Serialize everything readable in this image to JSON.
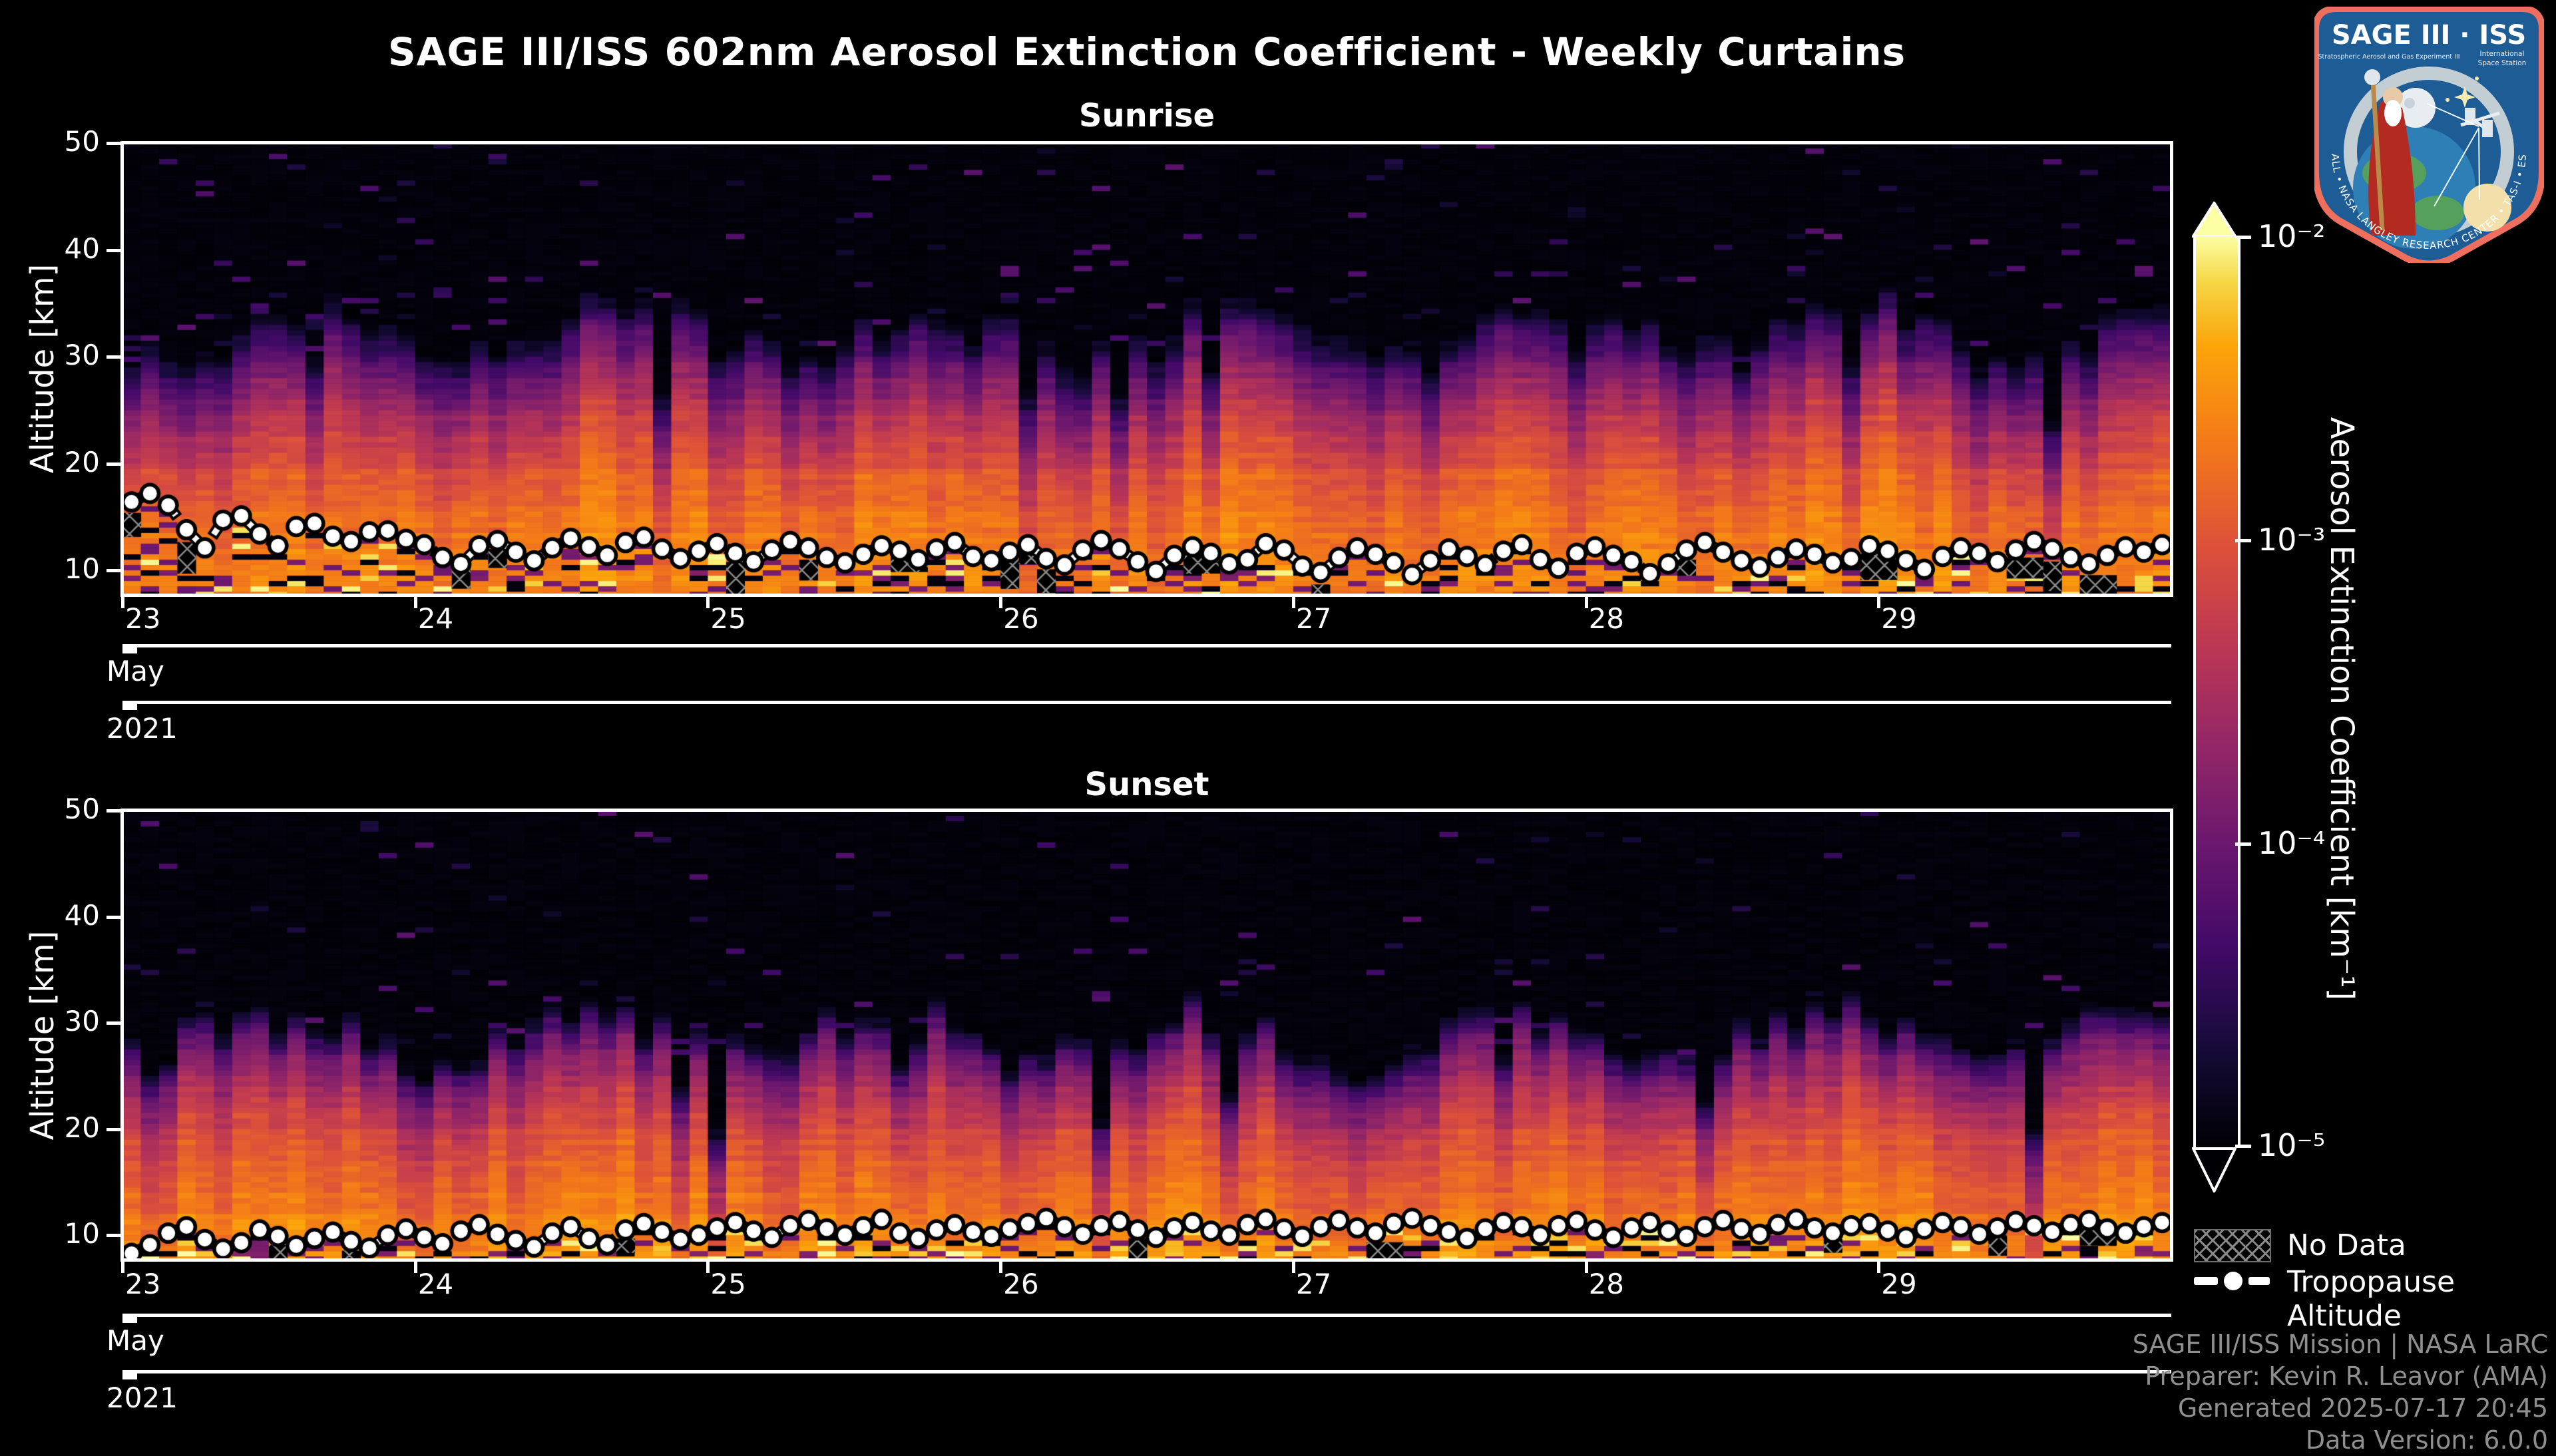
{
  "title": "SAGE III/ISS 602nm Aerosol Extinction Coefficient - Weekly Curtains",
  "panels": [
    {
      "subtitle": "Sunrise",
      "ylabel": "Altitude [km]",
      "yticks": [
        "50",
        "40",
        "30",
        "20",
        "10"
      ],
      "ytick_values": [
        50,
        40,
        30,
        20,
        10
      ],
      "x_axis": {
        "days": [
          "23",
          "24",
          "25",
          "26",
          "27",
          "28",
          "29"
        ],
        "month": "May",
        "year": "2021"
      }
    },
    {
      "subtitle": "Sunset",
      "ylabel": "Altitude [km]",
      "yticks": [
        "50",
        "40",
        "30",
        "20",
        "10"
      ],
      "ytick_values": [
        50,
        40,
        30,
        20,
        10
      ],
      "x_axis": {
        "days": [
          "23",
          "24",
          "25",
          "26",
          "27",
          "28",
          "29"
        ],
        "month": "May",
        "year": "2021"
      }
    }
  ],
  "colorbar": {
    "label": "Aerosol Extinction Coefficient [km⁻¹]",
    "ticks": [
      "10⁻²",
      "10⁻³",
      "10⁻⁴",
      "10⁻⁵"
    ],
    "tick_values": [
      0.01,
      0.001,
      0.0001,
      1e-05
    ],
    "scale": "log",
    "colormap": "inferno",
    "stops": [
      [
        0,
        "#000004"
      ],
      [
        0.11,
        "#160b39"
      ],
      [
        0.22,
        "#420a68"
      ],
      [
        0.33,
        "#6a176e"
      ],
      [
        0.44,
        "#932667"
      ],
      [
        0.55,
        "#bc3754"
      ],
      [
        0.66,
        "#dd513a"
      ],
      [
        0.77,
        "#f37819"
      ],
      [
        0.88,
        "#fca50a"
      ],
      [
        0.95,
        "#f6d746"
      ],
      [
        1,
        "#fcffa4"
      ]
    ]
  },
  "legend": {
    "no_data_label": "No Data",
    "tropopause_label": "Tropopause Altitude"
  },
  "attribution": [
    "SAGE III/ISS Mission | NASA LaRC",
    "Preparer: Kevin R. Leavor (AMA)",
    "Generated 2025-07-17 20:45",
    "Data Version: 6.0.0"
  ],
  "logo": {
    "title": "SAGE III · ISS",
    "subtitle_left": "Stratospheric Aerosol and Gas Experiment III",
    "subtitle_right_1": "International",
    "subtitle_right_2": "Space Station",
    "ring_text": "BALL • NASA LANGLEY RESEARCH CENTER • TAS-I • ESA",
    "border_color": "#ee6f5e",
    "badge_color": "#1d5c94"
  },
  "chart_data": [
    {
      "type": "heatmap",
      "title": "Sunrise",
      "x_range": [
        "2021-05-23",
        "2021-05-30"
      ],
      "x_tick_days": [
        23,
        24,
        25,
        26,
        27,
        28,
        29
      ],
      "y_label": "Altitude [km]",
      "y_range_km": [
        7.7,
        50
      ],
      "altitude_resolution_km": 0.5,
      "n_profiles": 112,
      "color_scale": {
        "type": "log",
        "min": 1e-05,
        "max": 0.01,
        "units": "km⁻¹",
        "colormap": "inferno"
      },
      "seed": 20210523,
      "transition_alt_km": 32,
      "profile_anchors": [
        [
          7,
          0.82
        ],
        [
          12,
          0.78
        ],
        [
          18,
          0.7
        ],
        [
          22,
          0.6
        ],
        [
          26,
          0.45
        ],
        [
          29,
          0.3
        ],
        [
          31,
          0.17
        ],
        [
          32,
          0.08
        ],
        [
          33,
          0.02
        ]
      ],
      "speckle_p": 0.05,
      "no_data_p": 0.12,
      "bright_p": 0.07,
      "tropopause_km": [
        16.4,
        17.2,
        16.1,
        13.8,
        12.1,
        14.7,
        15.1,
        13.4,
        12.3,
        14.1,
        14.4,
        13.2,
        12.7,
        13.6,
        13.7,
        12.9,
        12.4,
        11.2,
        10.6,
        12.3,
        12.8,
        11.7,
        10.9,
        12.1,
        13.0,
        12.2,
        11.4,
        12.6,
        13.1,
        12.0,
        11.1,
        11.8,
        12.5,
        11.6,
        10.8,
        11.9,
        12.7,
        12.1,
        11.2,
        10.7,
        11.5,
        12.3,
        11.8,
        11.0,
        12.0,
        12.6,
        11.3,
        10.9,
        11.7,
        12.4,
        11.1,
        10.5,
        11.9,
        12.8,
        12.0,
        10.8,
        9.9,
        11.4,
        12.2,
        11.6,
        10.6,
        11.0,
        12.5,
        11.9,
        10.4,
        9.8,
        11.2,
        12.1,
        11.5,
        10.7,
        9.6,
        10.9,
        12.0,
        11.3,
        10.5,
        11.8,
        12.4,
        11.0,
        10.2,
        11.6,
        12.2,
        11.4,
        10.8,
        9.7,
        10.6,
        11.9,
        12.6,
        11.7,
        10.9,
        10.3,
        11.2,
        12.0,
        11.5,
        10.7,
        11.1,
        12.3,
        11.8,
        10.9,
        10.1,
        11.3,
        12.1,
        11.6,
        10.8,
        11.9,
        12.7,
        12.0,
        11.2,
        10.6,
        11.4,
        12.2,
        11.7,
        12.4
      ]
    },
    {
      "type": "heatmap",
      "title": "Sunset",
      "x_range": [
        "2021-05-23",
        "2021-05-30"
      ],
      "x_tick_days": [
        23,
        24,
        25,
        26,
        27,
        28,
        29
      ],
      "y_label": "Altitude [km]",
      "y_range_km": [
        7.7,
        50
      ],
      "altitude_resolution_km": 0.5,
      "n_profiles": 112,
      "color_scale": {
        "type": "log",
        "min": 1e-05,
        "max": 0.01,
        "units": "km⁻¹",
        "colormap": "inferno"
      },
      "seed": 20210524,
      "transition_alt_km": 28.5,
      "profile_anchors": [
        [
          7,
          0.85
        ],
        [
          10,
          0.8
        ],
        [
          15,
          0.72
        ],
        [
          20,
          0.62
        ],
        [
          23,
          0.5
        ],
        [
          26,
          0.36
        ],
        [
          28,
          0.18
        ],
        [
          28.5,
          0.08
        ],
        [
          29.5,
          0.02
        ]
      ],
      "speckle_p": 0.04,
      "no_data_p": 0.08,
      "bright_p": 0.1,
      "tropopause_km": [
        8.3,
        9.1,
        10.2,
        10.8,
        9.6,
        8.7,
        9.3,
        10.5,
        9.9,
        9.0,
        9.7,
        10.3,
        9.4,
        8.8,
        10.0,
        10.6,
        9.8,
        9.2,
        10.4,
        11.0,
        10.1,
        9.5,
        8.9,
        10.2,
        10.8,
        9.7,
        9.1,
        10.5,
        11.1,
        10.3,
        9.6,
        10.0,
        10.7,
        11.2,
        10.4,
        9.8,
        10.9,
        11.4,
        10.6,
        10.0,
        10.8,
        11.5,
        10.2,
        9.7,
        10.5,
        11.0,
        10.3,
        9.9,
        10.6,
        11.1,
        11.6,
        10.8,
        10.1,
        10.9,
        11.3,
        10.5,
        9.8,
        10.7,
        11.2,
        10.4,
        10.0,
        11.0,
        11.5,
        10.6,
        9.9,
        10.8,
        11.4,
        10.7,
        10.2,
        11.1,
        11.6,
        10.9,
        10.3,
        9.7,
        10.6,
        11.2,
        10.8,
        10.0,
        10.9,
        11.3,
        10.5,
        9.8,
        10.7,
        11.2,
        10.4,
        9.9,
        10.8,
        11.4,
        10.6,
        10.1,
        11.0,
        11.5,
        10.7,
        10.2,
        10.9,
        11.1,
        10.4,
        9.8,
        10.6,
        11.2,
        10.8,
        10.1,
        10.7,
        11.3,
        10.9,
        10.3,
        11.0,
        11.4,
        10.6,
        10.2,
        10.8,
        11.2
      ]
    }
  ]
}
